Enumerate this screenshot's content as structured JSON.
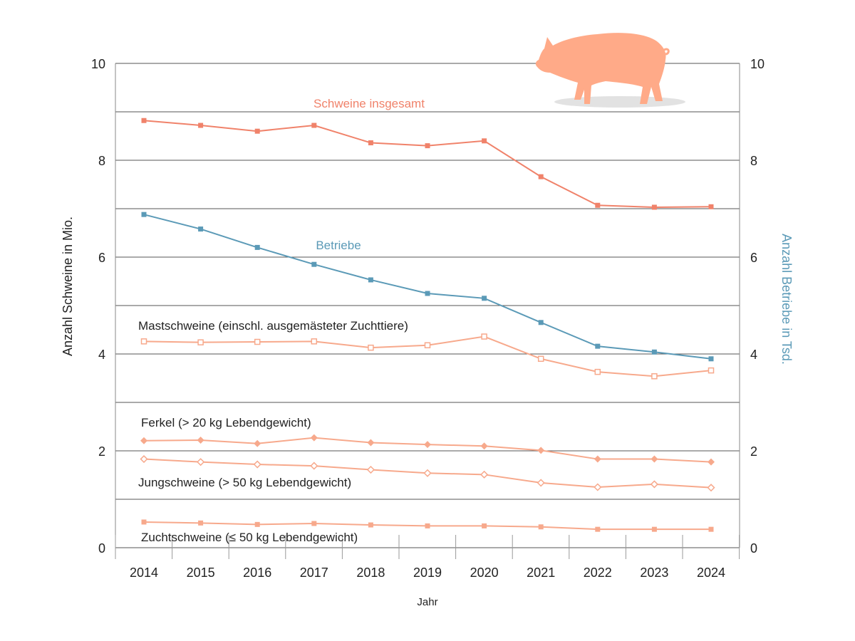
{
  "chart_data": {
    "type": "line",
    "title": "",
    "xlabel": "Jahr",
    "ylabel_left": "Anzahl Schweine in Mio.",
    "ylabel_right": "Anzahl Betriebe  in Tsd.",
    "ylim_left": [
      0,
      10
    ],
    "ylim_right": [
      0,
      10
    ],
    "yticks_left": [
      "0",
      "2",
      "4",
      "6",
      "8",
      "10"
    ],
    "yticks_right": [
      "0",
      "2",
      "4",
      "6",
      "8",
      "10"
    ],
    "grid": true,
    "categories": [
      "2014",
      "2015",
      "2016",
      "2017",
      "2018",
      "2019",
      "2020",
      "2021",
      "2022",
      "2023",
      "2024"
    ],
    "series": [
      {
        "name": "Schweine insgesamt",
        "axis": "left",
        "marker": "filled-square",
        "color": "#f0826a",
        "label_color": "#f0826a",
        "values": [
          8.82,
          8.72,
          8.6,
          8.72,
          8.36,
          8.3,
          8.4,
          7.66,
          7.07,
          7.03,
          7.04
        ]
      },
      {
        "name": "Betriebe",
        "axis": "right",
        "marker": "filled-square",
        "color": "#5b9ab7",
        "label_color": "#5b9ab7",
        "values": [
          6.88,
          6.58,
          6.2,
          5.85,
          5.53,
          5.25,
          5.15,
          4.65,
          4.16,
          4.04,
          3.9
        ]
      },
      {
        "name": "Mastschweine (einschl. ausgemästeter Zuchttiere)",
        "axis": "left",
        "marker": "open-square",
        "color": "#f7a98c",
        "label_color": "#222222",
        "values": [
          4.26,
          4.24,
          4.25,
          4.26,
          4.13,
          4.18,
          4.36,
          3.9,
          3.63,
          3.54,
          3.66
        ]
      },
      {
        "name": "Ferkel (> 20 kg Lebendgewicht)",
        "axis": "left",
        "marker": "filled-diamond",
        "color": "#f7a98c",
        "label_color": "#222222",
        "values": [
          2.21,
          2.22,
          2.15,
          2.27,
          2.17,
          2.13,
          2.1,
          2.01,
          1.83,
          1.83,
          1.77
        ]
      },
      {
        "name": "Jungschweine (> 50 kg Lebendgewicht)",
        "axis": "left",
        "marker": "open-diamond",
        "color": "#f7a98c",
        "label_color": "#222222",
        "values": [
          1.83,
          1.77,
          1.72,
          1.69,
          1.61,
          1.54,
          1.51,
          1.34,
          1.25,
          1.31,
          1.24
        ]
      },
      {
        "name": "Zuchtschweine (≤ 50 kg Lebendgewicht)",
        "axis": "left",
        "marker": "filled-square",
        "color": "#f7a98c",
        "label_color": "#222222",
        "values": [
          0.53,
          0.51,
          0.48,
          0.5,
          0.47,
          0.45,
          0.45,
          0.43,
          0.38,
          0.38,
          0.38
        ]
      }
    ],
    "annotations": [
      "pig-silhouette"
    ]
  },
  "colors": {
    "grid": "#555555",
    "axis_box": "#888888",
    "pig": "#ffaa88",
    "pig_shadow": "#e2e2e2"
  }
}
